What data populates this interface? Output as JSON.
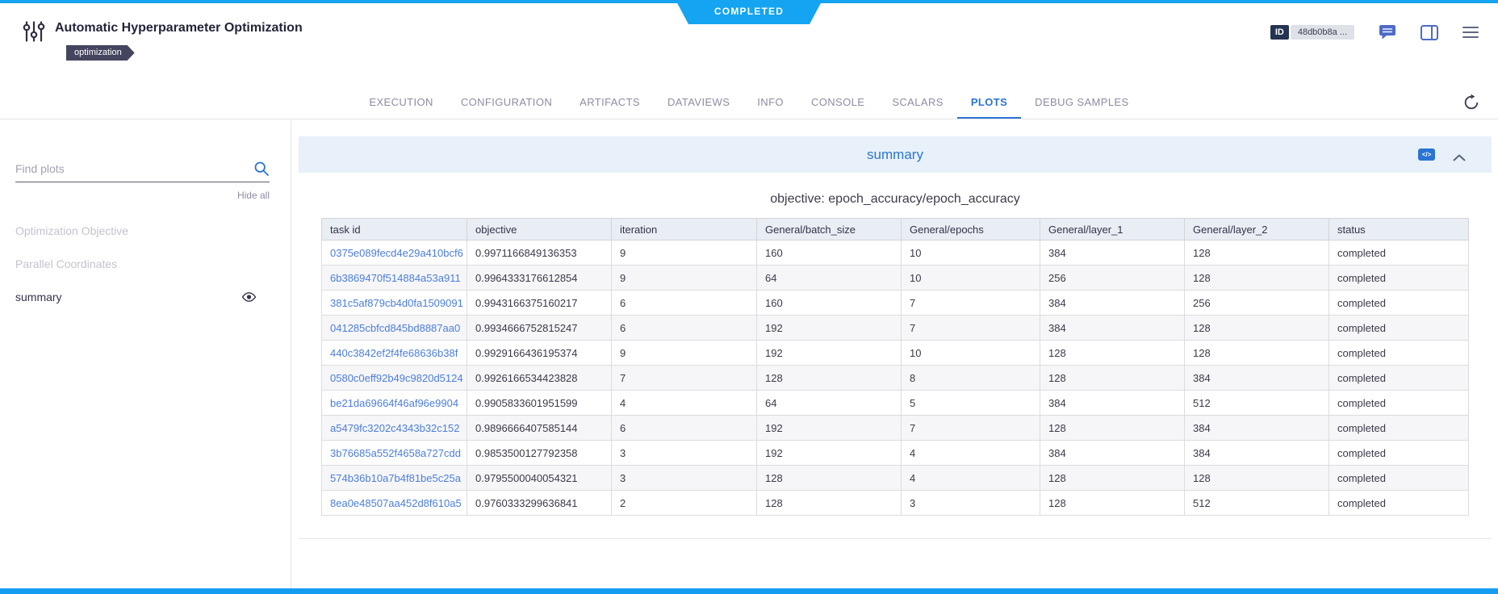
{
  "status": {
    "ribbon": "COMPLETED"
  },
  "header": {
    "title": "Automatic Hyperparameter Optimization",
    "tag": "optimization",
    "id_label": "ID",
    "id_value": "48db0b8a ..."
  },
  "tabs": {
    "items": [
      {
        "label": "EXECUTION",
        "active": false
      },
      {
        "label": "CONFIGURATION",
        "active": false
      },
      {
        "label": "ARTIFACTS",
        "active": false
      },
      {
        "label": "DATAVIEWS",
        "active": false
      },
      {
        "label": "INFO",
        "active": false
      },
      {
        "label": "CONSOLE",
        "active": false
      },
      {
        "label": "SCALARS",
        "active": false
      },
      {
        "label": "PLOTS",
        "active": true
      },
      {
        "label": "DEBUG SAMPLES",
        "active": false
      }
    ]
  },
  "sidebar": {
    "search_placeholder": "Find plots",
    "hide_all_label": "Hide all",
    "items": [
      {
        "label": "Optimization Objective",
        "muted": true,
        "eye": false
      },
      {
        "label": "Parallel Coordinates",
        "muted": true,
        "eye": false
      },
      {
        "label": "summary",
        "muted": false,
        "eye": true
      }
    ]
  },
  "panel": {
    "title": "summary",
    "code_icon": "</>",
    "chart_title": "objective: epoch_accuracy/epoch_accuracy"
  },
  "chart_data": {
    "type": "table",
    "title": "objective: epoch_accuracy/epoch_accuracy",
    "headers": [
      "task id",
      "objective",
      "iteration",
      "General/batch_size",
      "General/epochs",
      "General/layer_1",
      "General/layer_2",
      "status"
    ],
    "rows": [
      [
        "0375e089fecd4e29a410bcf6",
        "0.9971166849136353",
        "9",
        "160",
        "10",
        "384",
        "128",
        "completed"
      ],
      [
        "6b3869470f514884a53a911",
        "0.9964333176612854",
        "9",
        "64",
        "10",
        "256",
        "128",
        "completed"
      ],
      [
        "381c5af879cb4d0fa1509091",
        "0.9943166375160217",
        "6",
        "160",
        "7",
        "384",
        "256",
        "completed"
      ],
      [
        "041285cbfcd845bd8887aa0",
        "0.9934666752815247",
        "6",
        "192",
        "7",
        "384",
        "128",
        "completed"
      ],
      [
        "440c3842ef2f4fe68636b38f",
        "0.9929166436195374",
        "9",
        "192",
        "10",
        "128",
        "128",
        "completed"
      ],
      [
        "0580c0eff92b49c9820d5124",
        "0.9926166534423828",
        "7",
        "128",
        "8",
        "128",
        "384",
        "completed"
      ],
      [
        "be21da69664f46af96e9904",
        "0.9905833601951599",
        "4",
        "64",
        "5",
        "384",
        "512",
        "completed"
      ],
      [
        "a5479fc3202c4343b32c152",
        "0.9896666407585144",
        "6",
        "192",
        "7",
        "128",
        "384",
        "completed"
      ],
      [
        "3b76685a552f4658a727cdd",
        "0.9853500127792358",
        "3",
        "192",
        "4",
        "384",
        "384",
        "completed"
      ],
      [
        "574b36b10a7b4f81be5c25a",
        "0.9795500040054321",
        "3",
        "128",
        "4",
        "128",
        "128",
        "completed"
      ],
      [
        "8ea0e48507aa452d8f610a5",
        "0.9760333299636841",
        "2",
        "128",
        "3",
        "128",
        "512",
        "completed"
      ]
    ]
  },
  "colors": {
    "accent_blue": "#14a4f1",
    "tab_active_blue": "#2a74d4",
    "link_blue": "#4b7de0",
    "panel_header_bg": "#e8f1fa",
    "table_header_bg": "#e9edf4",
    "tag_bg": "#45455f"
  }
}
